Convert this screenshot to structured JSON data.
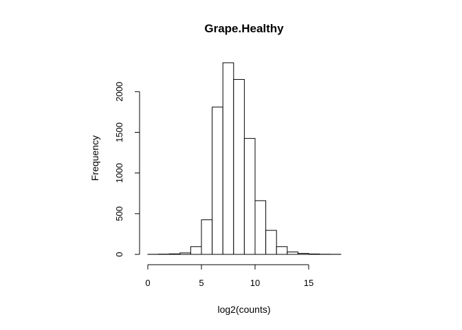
{
  "chart_data": {
    "type": "bar",
    "title": "Grape.Healthy",
    "xlabel": "log2(counts)",
    "ylabel": "Frequency",
    "bin_width": 1,
    "bins": [
      {
        "x0": 0,
        "x1": 1,
        "count": 1
      },
      {
        "x0": 1,
        "x1": 2,
        "count": 3
      },
      {
        "x0": 2,
        "x1": 3,
        "count": 6
      },
      {
        "x0": 3,
        "x1": 4,
        "count": 18
      },
      {
        "x0": 4,
        "x1": 5,
        "count": 95
      },
      {
        "x0": 5,
        "x1": 6,
        "count": 425
      },
      {
        "x0": 6,
        "x1": 7,
        "count": 1810
      },
      {
        "x0": 7,
        "x1": 8,
        "count": 2355
      },
      {
        "x0": 8,
        "x1": 9,
        "count": 2150
      },
      {
        "x0": 9,
        "x1": 10,
        "count": 1425
      },
      {
        "x0": 10,
        "x1": 11,
        "count": 660
      },
      {
        "x0": 11,
        "x1": 12,
        "count": 295
      },
      {
        "x0": 12,
        "x1": 13,
        "count": 95
      },
      {
        "x0": 13,
        "x1": 14,
        "count": 30
      },
      {
        "x0": 14,
        "x1": 15,
        "count": 12
      },
      {
        "x0": 15,
        "x1": 16,
        "count": 5
      },
      {
        "x0": 16,
        "x1": 17,
        "count": 2
      },
      {
        "x0": 17,
        "x1": 18,
        "count": 1
      }
    ],
    "xlim": [
      0,
      18
    ],
    "ylim": [
      0,
      2400
    ],
    "x_ticks": [
      0,
      5,
      10,
      15
    ],
    "y_ticks": [
      0,
      500,
      1000,
      1500,
      2000
    ],
    "grid": false,
    "legend": "none",
    "bar_fill": "#ffffff",
    "bar_stroke": "#000000"
  }
}
